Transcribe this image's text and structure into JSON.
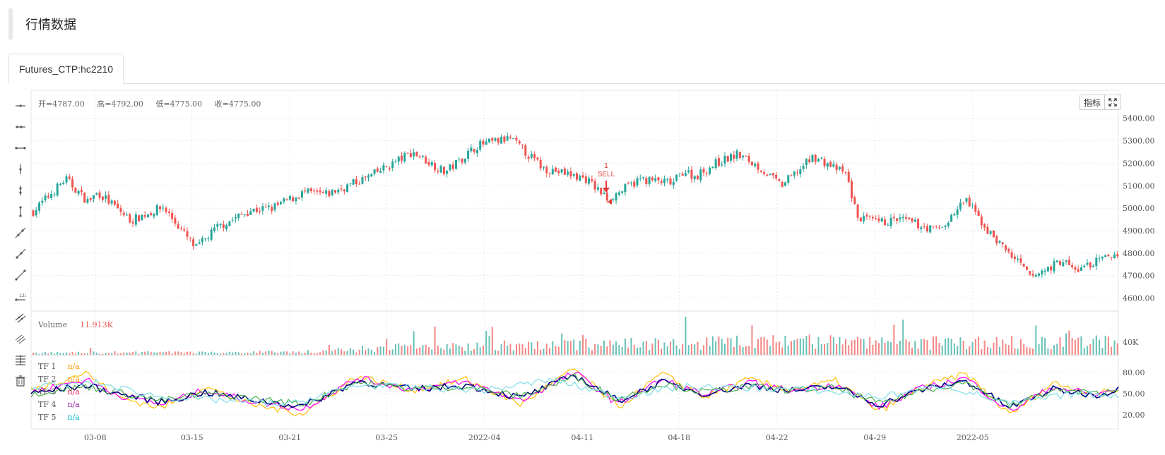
{
  "page_title": "行情数据",
  "tab": {
    "label": "Futures_CTP:hc2210"
  },
  "ohlc": {
    "open": "开=4787.00",
    "high": "高=4792.00",
    "low": "低=4775.00",
    "close": "收=4775.00"
  },
  "buttons": {
    "indicators": "指标",
    "fullscreen_icon": "fullscreen-icon"
  },
  "toolbar_icons": [
    "horizontal-line-icon",
    "horizontal-ray-icon",
    "horizontal-segment-icon",
    "vertical-line-icon",
    "vertical-ray-icon",
    "vertical-segment-icon",
    "trend-line-icon",
    "ray-icon",
    "segment-icon",
    "price-label-icon",
    "parallel-channel-icon",
    "multi-line-icon",
    "fib-lines-icon",
    "trash-icon"
  ],
  "signal": {
    "count": "1",
    "label": "SELL"
  },
  "volume_panel": {
    "label": "Volume",
    "value": "11.913K",
    "axis": [
      "40K"
    ]
  },
  "tf_legend": [
    {
      "name": "TF 1",
      "value": "n/a",
      "color": "#ff9800"
    },
    {
      "name": "TF 2",
      "value": "n/a",
      "color": "#ff9800"
    },
    {
      "name": "TF 3",
      "value": "n/a",
      "color": "#e91e63"
    },
    {
      "name": "TF 4",
      "value": "n/a",
      "color": "#9c27b0"
    },
    {
      "name": "TF 5",
      "value": "n/a",
      "color": "#00bcd4"
    }
  ],
  "colors": {
    "up": "#26a69a",
    "down": "#ef5350",
    "grid": "#e8e8e8"
  },
  "chart_data": {
    "type": "line",
    "title": "",
    "price_axis": [
      "5400.00",
      "5300.00",
      "5200.00",
      "5100.00",
      "5000.00",
      "4900.00",
      "4800.00",
      "4700.00",
      "4600.00"
    ],
    "price_ylim": [
      4570,
      5440
    ],
    "osc_axis": [
      "80.00",
      "50.00",
      "20.00"
    ],
    "osc_ylim": [
      0,
      100
    ],
    "x_ticks": [
      "03-08",
      "03-15",
      "03-21",
      "03-25",
      "2022-04",
      "04-11",
      "04-18",
      "04-22",
      "04-29",
      "2022-05"
    ],
    "close_path": {
      "t": [
        0,
        0.03,
        0.05,
        0.06,
        0.09,
        0.12,
        0.15,
        0.17,
        0.2,
        0.22,
        0.25,
        0.27,
        0.31,
        0.35,
        0.38,
        0.41,
        0.44,
        0.47,
        0.51,
        0.53,
        0.56,
        0.59,
        0.6,
        0.61,
        0.63,
        0.65,
        0.67,
        0.69,
        0.72,
        0.75,
        0.76,
        0.78,
        0.8,
        0.83,
        0.84,
        0.86,
        0.88,
        0.91,
        0.92,
        0.95,
        0.96,
        0.98,
        1.0
      ],
      "v": [
        4985,
        5130,
        5030,
        5070,
        4945,
        5005,
        4820,
        4915,
        4990,
        5000,
        5070,
        5060,
        5140,
        5250,
        5160,
        5280,
        5310,
        5180,
        5130,
        5040,
        5130,
        5110,
        5170,
        5140,
        5200,
        5240,
        5180,
        5100,
        5230,
        5150,
        4960,
        4935,
        4950,
        4905,
        4920,
        5040,
        4900,
        4750,
        4690,
        4770,
        4720,
        4760,
        4800
      ]
    },
    "volume_series": {
      "name": "Volume",
      "t": [
        0,
        0.25,
        0.35,
        0.5,
        0.7,
        0.8,
        1.0
      ],
      "level": [
        0.05,
        0.08,
        0.22,
        0.27,
        0.35,
        0.32,
        0.33
      ]
    },
    "oscillator_series": [
      {
        "name": "TF 1",
        "color": "#ffc107",
        "t": [
          0,
          0.05,
          0.08,
          0.12,
          0.16,
          0.2,
          0.25,
          0.3,
          0.35,
          0.4,
          0.45,
          0.5,
          0.54,
          0.58,
          0.62,
          0.66,
          0.7,
          0.74,
          0.78,
          0.82,
          0.86,
          0.9,
          0.94,
          0.98,
          1.0
        ],
        "v": [
          55,
          80,
          45,
          30,
          60,
          35,
          22,
          75,
          55,
          70,
          35,
          85,
          30,
          78,
          45,
          70,
          55,
          68,
          25,
          60,
          78,
          20,
          65,
          50,
          55
        ]
      },
      {
        "name": "TF 3",
        "color": "#ff00ff",
        "t": [
          0,
          0.05,
          0.08,
          0.12,
          0.16,
          0.2,
          0.25,
          0.3,
          0.35,
          0.4,
          0.45,
          0.5,
          0.54,
          0.58,
          0.62,
          0.66,
          0.7,
          0.74,
          0.78,
          0.82,
          0.86,
          0.9,
          0.94,
          0.98,
          1.0
        ],
        "v": [
          52,
          70,
          48,
          35,
          55,
          40,
          28,
          72,
          56,
          66,
          40,
          80,
          35,
          70,
          48,
          66,
          54,
          64,
          30,
          58,
          72,
          25,
          60,
          48,
          58
        ]
      },
      {
        "name": "TF 4",
        "color": "#000080",
        "t": [
          0,
          0.05,
          0.08,
          0.12,
          0.16,
          0.2,
          0.25,
          0.3,
          0.35,
          0.4,
          0.45,
          0.5,
          0.54,
          0.58,
          0.62,
          0.66,
          0.7,
          0.74,
          0.78,
          0.82,
          0.86,
          0.9,
          0.94,
          0.98,
          1.0
        ],
        "v": [
          50,
          62,
          50,
          38,
          52,
          42,
          32,
          68,
          56,
          62,
          44,
          76,
          40,
          66,
          50,
          62,
          54,
          60,
          34,
          56,
          68,
          30,
          56,
          48,
          56
        ]
      },
      {
        "name": "TF 2",
        "color": "#4caf50",
        "t": [
          0,
          0.05,
          0.08,
          0.12,
          0.16,
          0.2,
          0.25,
          0.3,
          0.35,
          0.4,
          0.45,
          0.5,
          0.54,
          0.58,
          0.62,
          0.66,
          0.7,
          0.74,
          0.78,
          0.82,
          0.86,
          0.9,
          0.94,
          0.98,
          1.0
        ],
        "v": [
          50,
          60,
          52,
          40,
          50,
          44,
          35,
          66,
          57,
          60,
          46,
          74,
          42,
          64,
          52,
          60,
          55,
          58,
          36,
          55,
          66,
          32,
          55,
          50,
          55
        ]
      },
      {
        "name": "TF 5",
        "color": "#80deea",
        "t": [
          0,
          0.06,
          0.12,
          0.18,
          0.24,
          0.3,
          0.36,
          0.42,
          0.48,
          0.54,
          0.6,
          0.66,
          0.72,
          0.78,
          0.84,
          0.9,
          0.96,
          1.0
        ],
        "v": [
          60,
          65,
          45,
          40,
          35,
          62,
          58,
          55,
          70,
          45,
          60,
          58,
          55,
          45,
          62,
          35,
          50,
          48
        ]
      }
    ]
  }
}
